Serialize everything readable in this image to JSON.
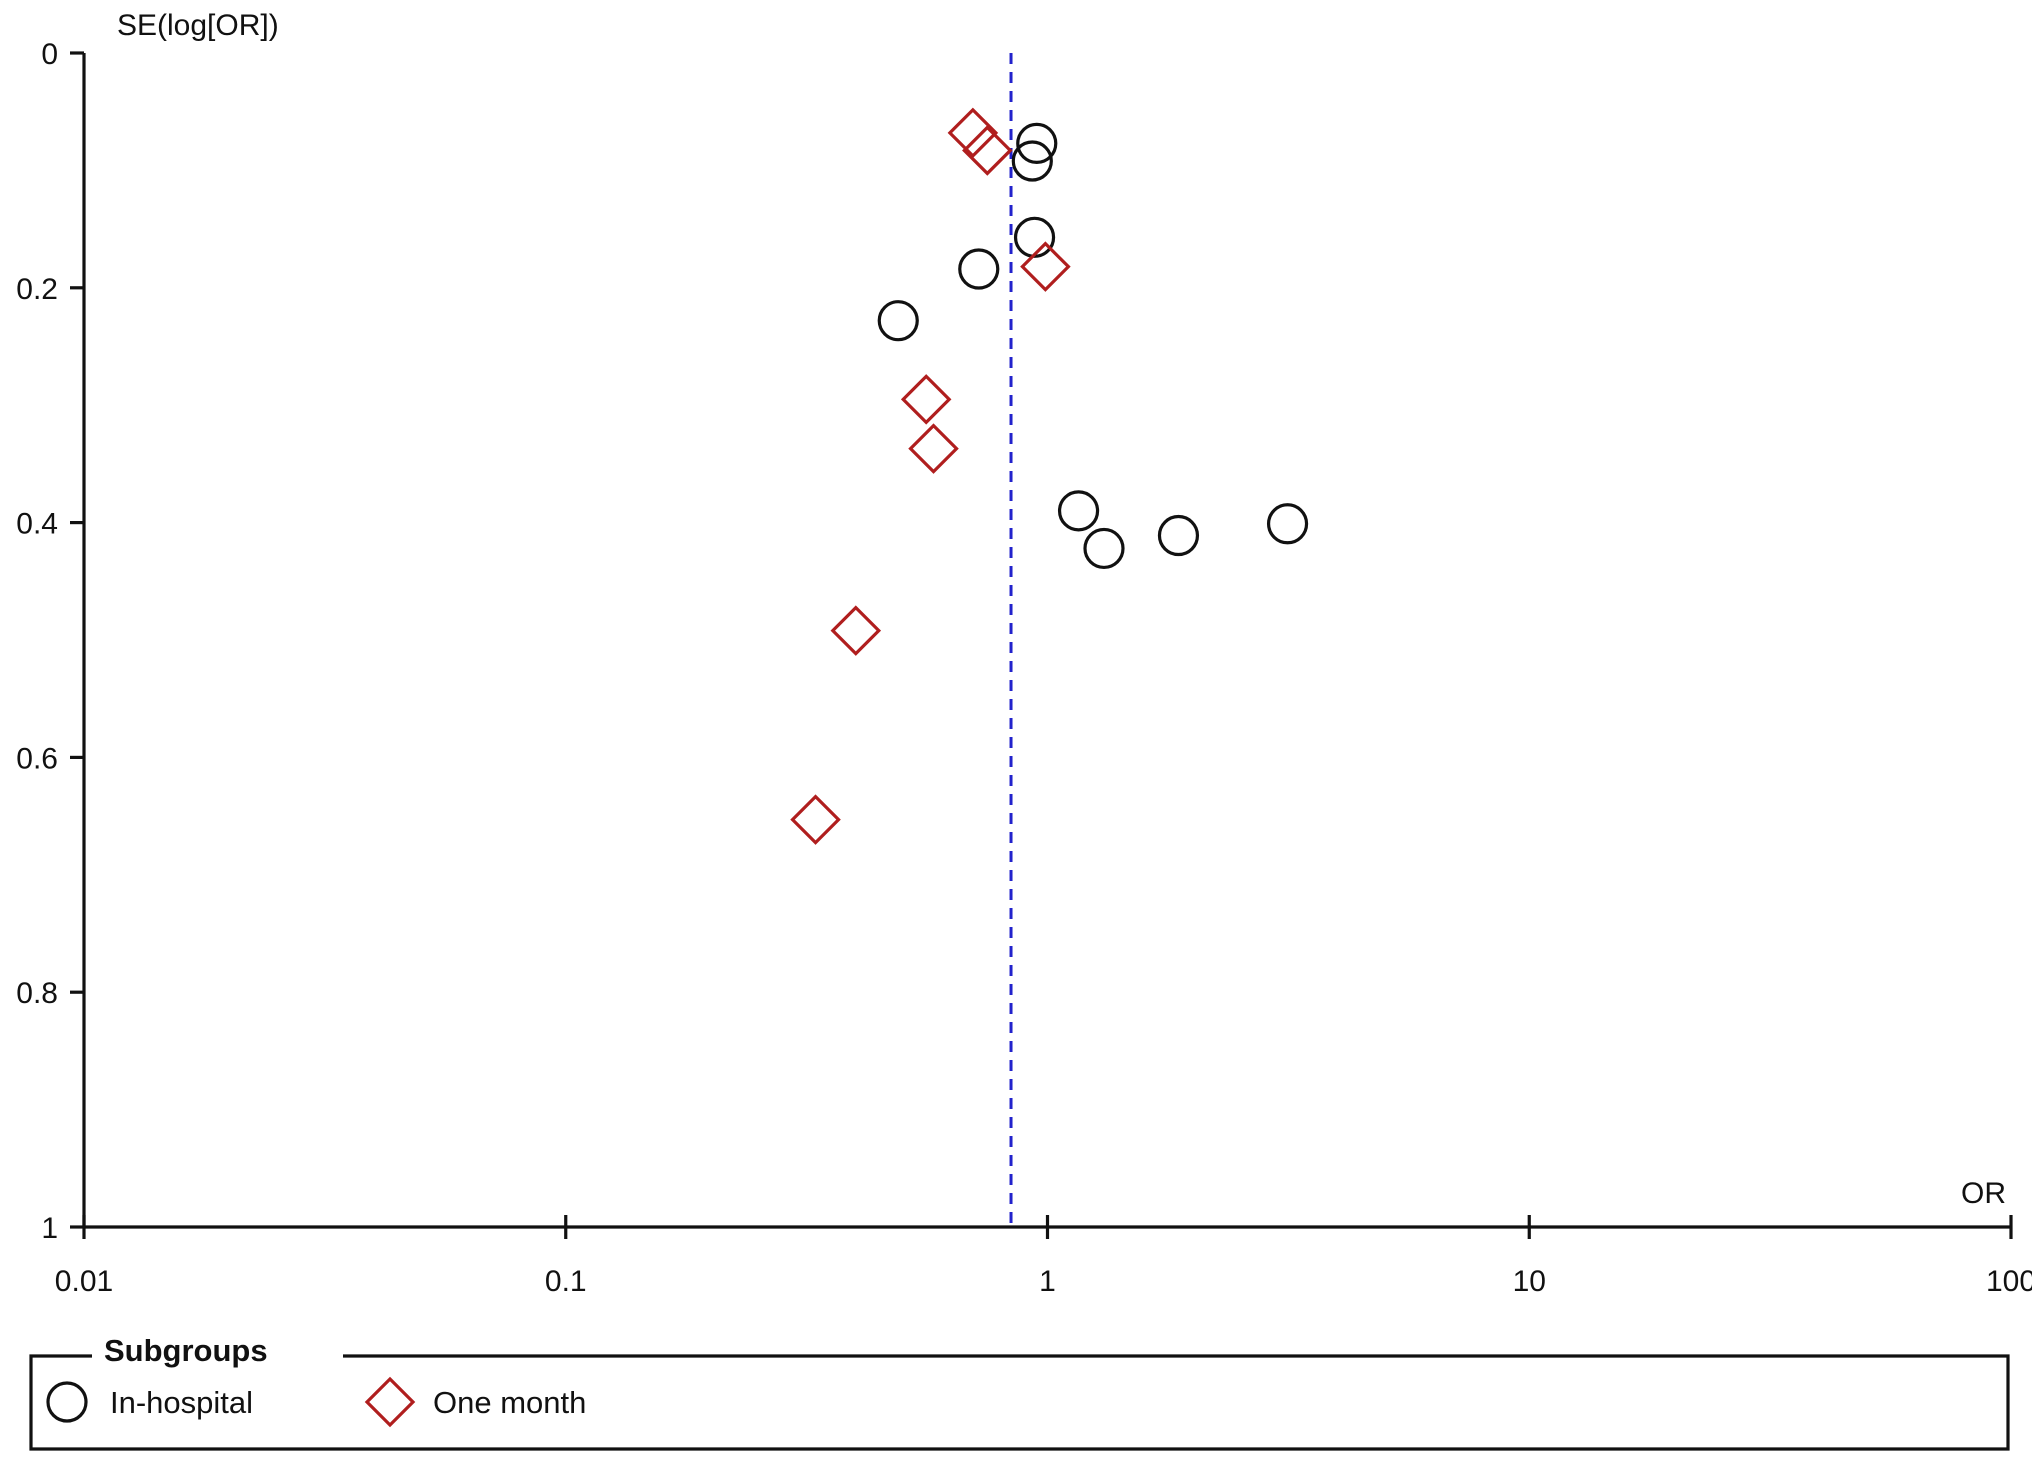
{
  "chart_data": {
    "type": "scatter",
    "title": "",
    "ylabel": "SE(log[OR])",
    "xlabel": "OR",
    "x_scale": "log",
    "xlim": [
      0.01,
      100
    ],
    "ylim": [
      0,
      1
    ],
    "y_inverted": true,
    "x_ticks": [
      "0.01",
      "0.1",
      "1",
      "10",
      "100"
    ],
    "y_ticks": [
      "0",
      "0.2",
      "0.4",
      "0.6",
      "0.8",
      "1"
    ],
    "reference_line": {
      "x": 0.84,
      "style": "dashed",
      "color": "#2222cc"
    },
    "grid": false,
    "legend": {
      "title": "Subgroups",
      "placement": "bottom"
    },
    "series": [
      {
        "name": "In-hospital",
        "marker": "circle",
        "color": "#111111",
        "points": [
          {
            "x": 0.95,
            "y": 0.077
          },
          {
            "x": 0.93,
            "y": 0.092
          },
          {
            "x": 0.94,
            "y": 0.157
          },
          {
            "x": 0.72,
            "y": 0.184
          },
          {
            "x": 0.49,
            "y": 0.228
          },
          {
            "x": 1.16,
            "y": 0.39
          },
          {
            "x": 1.31,
            "y": 0.422
          },
          {
            "x": 1.87,
            "y": 0.411
          },
          {
            "x": 3.15,
            "y": 0.401
          }
        ]
      },
      {
        "name": "One month",
        "marker": "diamond",
        "color": "#b01e1e",
        "points": [
          {
            "x": 0.7,
            "y": 0.068
          },
          {
            "x": 0.75,
            "y": 0.083
          },
          {
            "x": 0.99,
            "y": 0.182
          },
          {
            "x": 0.56,
            "y": 0.295
          },
          {
            "x": 0.58,
            "y": 0.337
          },
          {
            "x": 0.4,
            "y": 0.492
          },
          {
            "x": 0.33,
            "y": 0.653
          }
        ]
      }
    ]
  }
}
